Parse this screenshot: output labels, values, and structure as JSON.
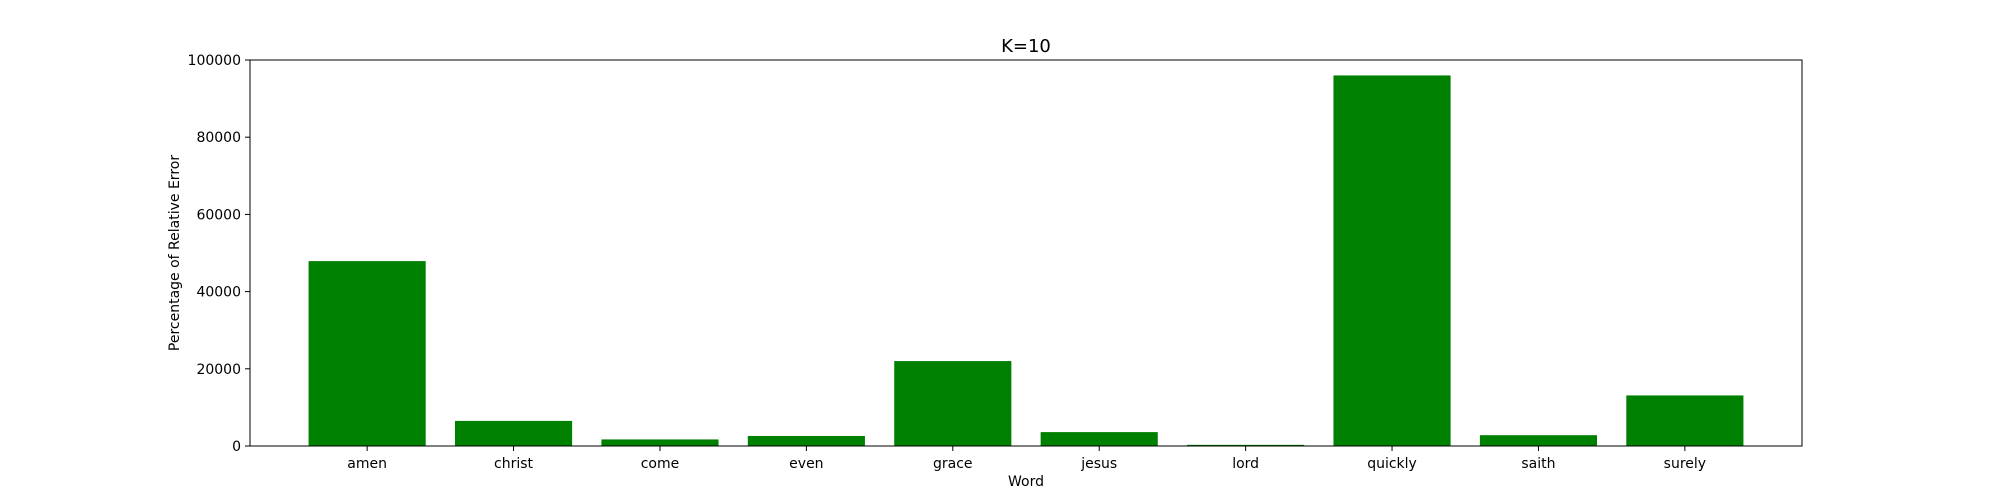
{
  "chart_data": {
    "type": "bar",
    "title": "K=10",
    "xlabel": "Word",
    "ylabel": "Percentage of Relative Error",
    "categories": [
      "amen",
      "christ",
      "come",
      "even",
      "grace",
      "jesus",
      "lord",
      "quickly",
      "saith",
      "surely"
    ],
    "values": [
      47900,
      6500,
      1700,
      2600,
      22000,
      3600,
      300,
      96000,
      2800,
      13100
    ],
    "ylim": [
      0,
      100000
    ],
    "yticks": [
      0,
      20000,
      40000,
      60000,
      80000,
      100000
    ],
    "ytick_labels": [
      "0",
      "20000",
      "40000",
      "60000",
      "80000",
      "100000"
    ],
    "bar_color": "#008000",
    "grid": false,
    "legend": "none"
  }
}
